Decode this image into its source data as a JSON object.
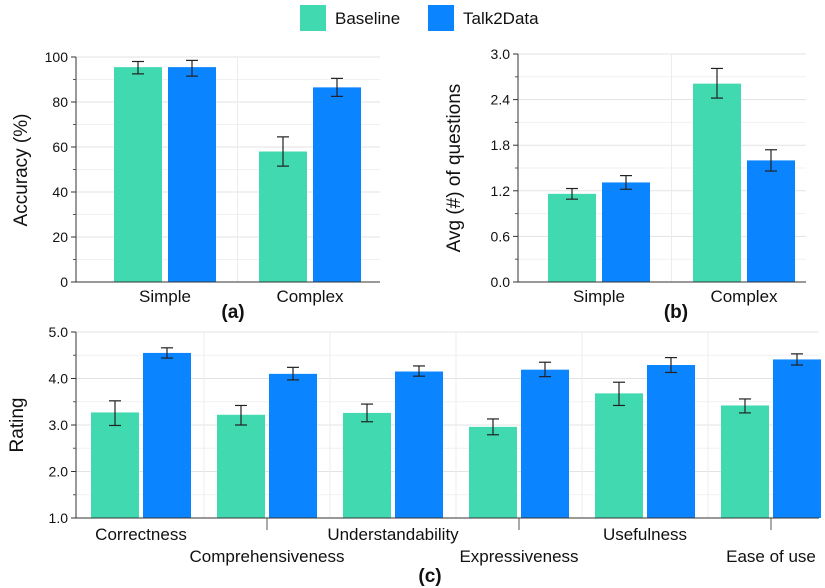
{
  "legend": {
    "items": [
      {
        "label": "Baseline",
        "color": "#40d9b0"
      },
      {
        "label": "Talk2Data",
        "color": "#0a84ff"
      }
    ]
  },
  "chart_data": [
    {
      "type": "bar",
      "panel_label": "(a)",
      "title": "",
      "xlabel": "",
      "ylabel": "Accuracy (%)",
      "ylim": [
        0,
        100
      ],
      "yticks": [
        "0",
        "20",
        "40",
        "60",
        "80",
        "100"
      ],
      "categories": [
        "Simple",
        "Complex"
      ],
      "series": [
        {
          "name": "Baseline",
          "values": [
            95.5,
            58
          ],
          "err_low": [
            92.5,
            51.5
          ],
          "err_high": [
            98,
            64.5
          ]
        },
        {
          "name": "Talk2Data",
          "values": [
            95.5,
            86.5
          ],
          "err_low": [
            91.5,
            82.5
          ],
          "err_high": [
            98.5,
            90.5
          ]
        }
      ],
      "grid": true
    },
    {
      "type": "bar",
      "panel_label": "(b)",
      "title": "",
      "xlabel": "",
      "ylabel": "Avg (#) of questions",
      "ylim": [
        0,
        3.0
      ],
      "yticks": [
        "0.0",
        "0.6",
        "1.2",
        "1.8",
        "2.4",
        "3.0"
      ],
      "categories": [
        "Simple",
        "Complex"
      ],
      "series": [
        {
          "name": "Baseline",
          "values": [
            1.16,
            2.61
          ],
          "err_low": [
            1.09,
            2.42
          ],
          "err_high": [
            1.23,
            2.81
          ]
        },
        {
          "name": "Talk2Data",
          "values": [
            1.31,
            1.6
          ],
          "err_low": [
            1.22,
            1.46
          ],
          "err_high": [
            1.4,
            1.74
          ]
        }
      ],
      "grid": true
    },
    {
      "type": "bar",
      "panel_label": "(c)",
      "title": "",
      "xlabel": "",
      "ylabel": "Rating",
      "ylim": [
        1.0,
        5.0
      ],
      "yticks": [
        "1.0",
        "2.0",
        "3.0",
        "4.0",
        "5.0"
      ],
      "categories": [
        "Correctness",
        "Comprehensiveness",
        "Understandability",
        "Expressiveness",
        "Usefulness",
        "Ease of use"
      ],
      "series": [
        {
          "name": "Baseline",
          "values": [
            3.27,
            3.22,
            3.26,
            2.96,
            3.68,
            3.42
          ],
          "err_low": [
            2.99,
            3.0,
            3.07,
            2.79,
            3.42,
            3.26
          ],
          "err_high": [
            3.52,
            3.42,
            3.45,
            3.13,
            3.92,
            3.56
          ]
        },
        {
          "name": "Talk2Data",
          "values": [
            4.55,
            4.1,
            4.15,
            4.19,
            4.29,
            4.41
          ],
          "err_low": [
            4.44,
            3.97,
            4.05,
            4.04,
            4.13,
            4.29
          ],
          "err_high": [
            4.66,
            4.24,
            4.27,
            4.35,
            4.45,
            4.53
          ]
        }
      ],
      "grid": true
    }
  ]
}
